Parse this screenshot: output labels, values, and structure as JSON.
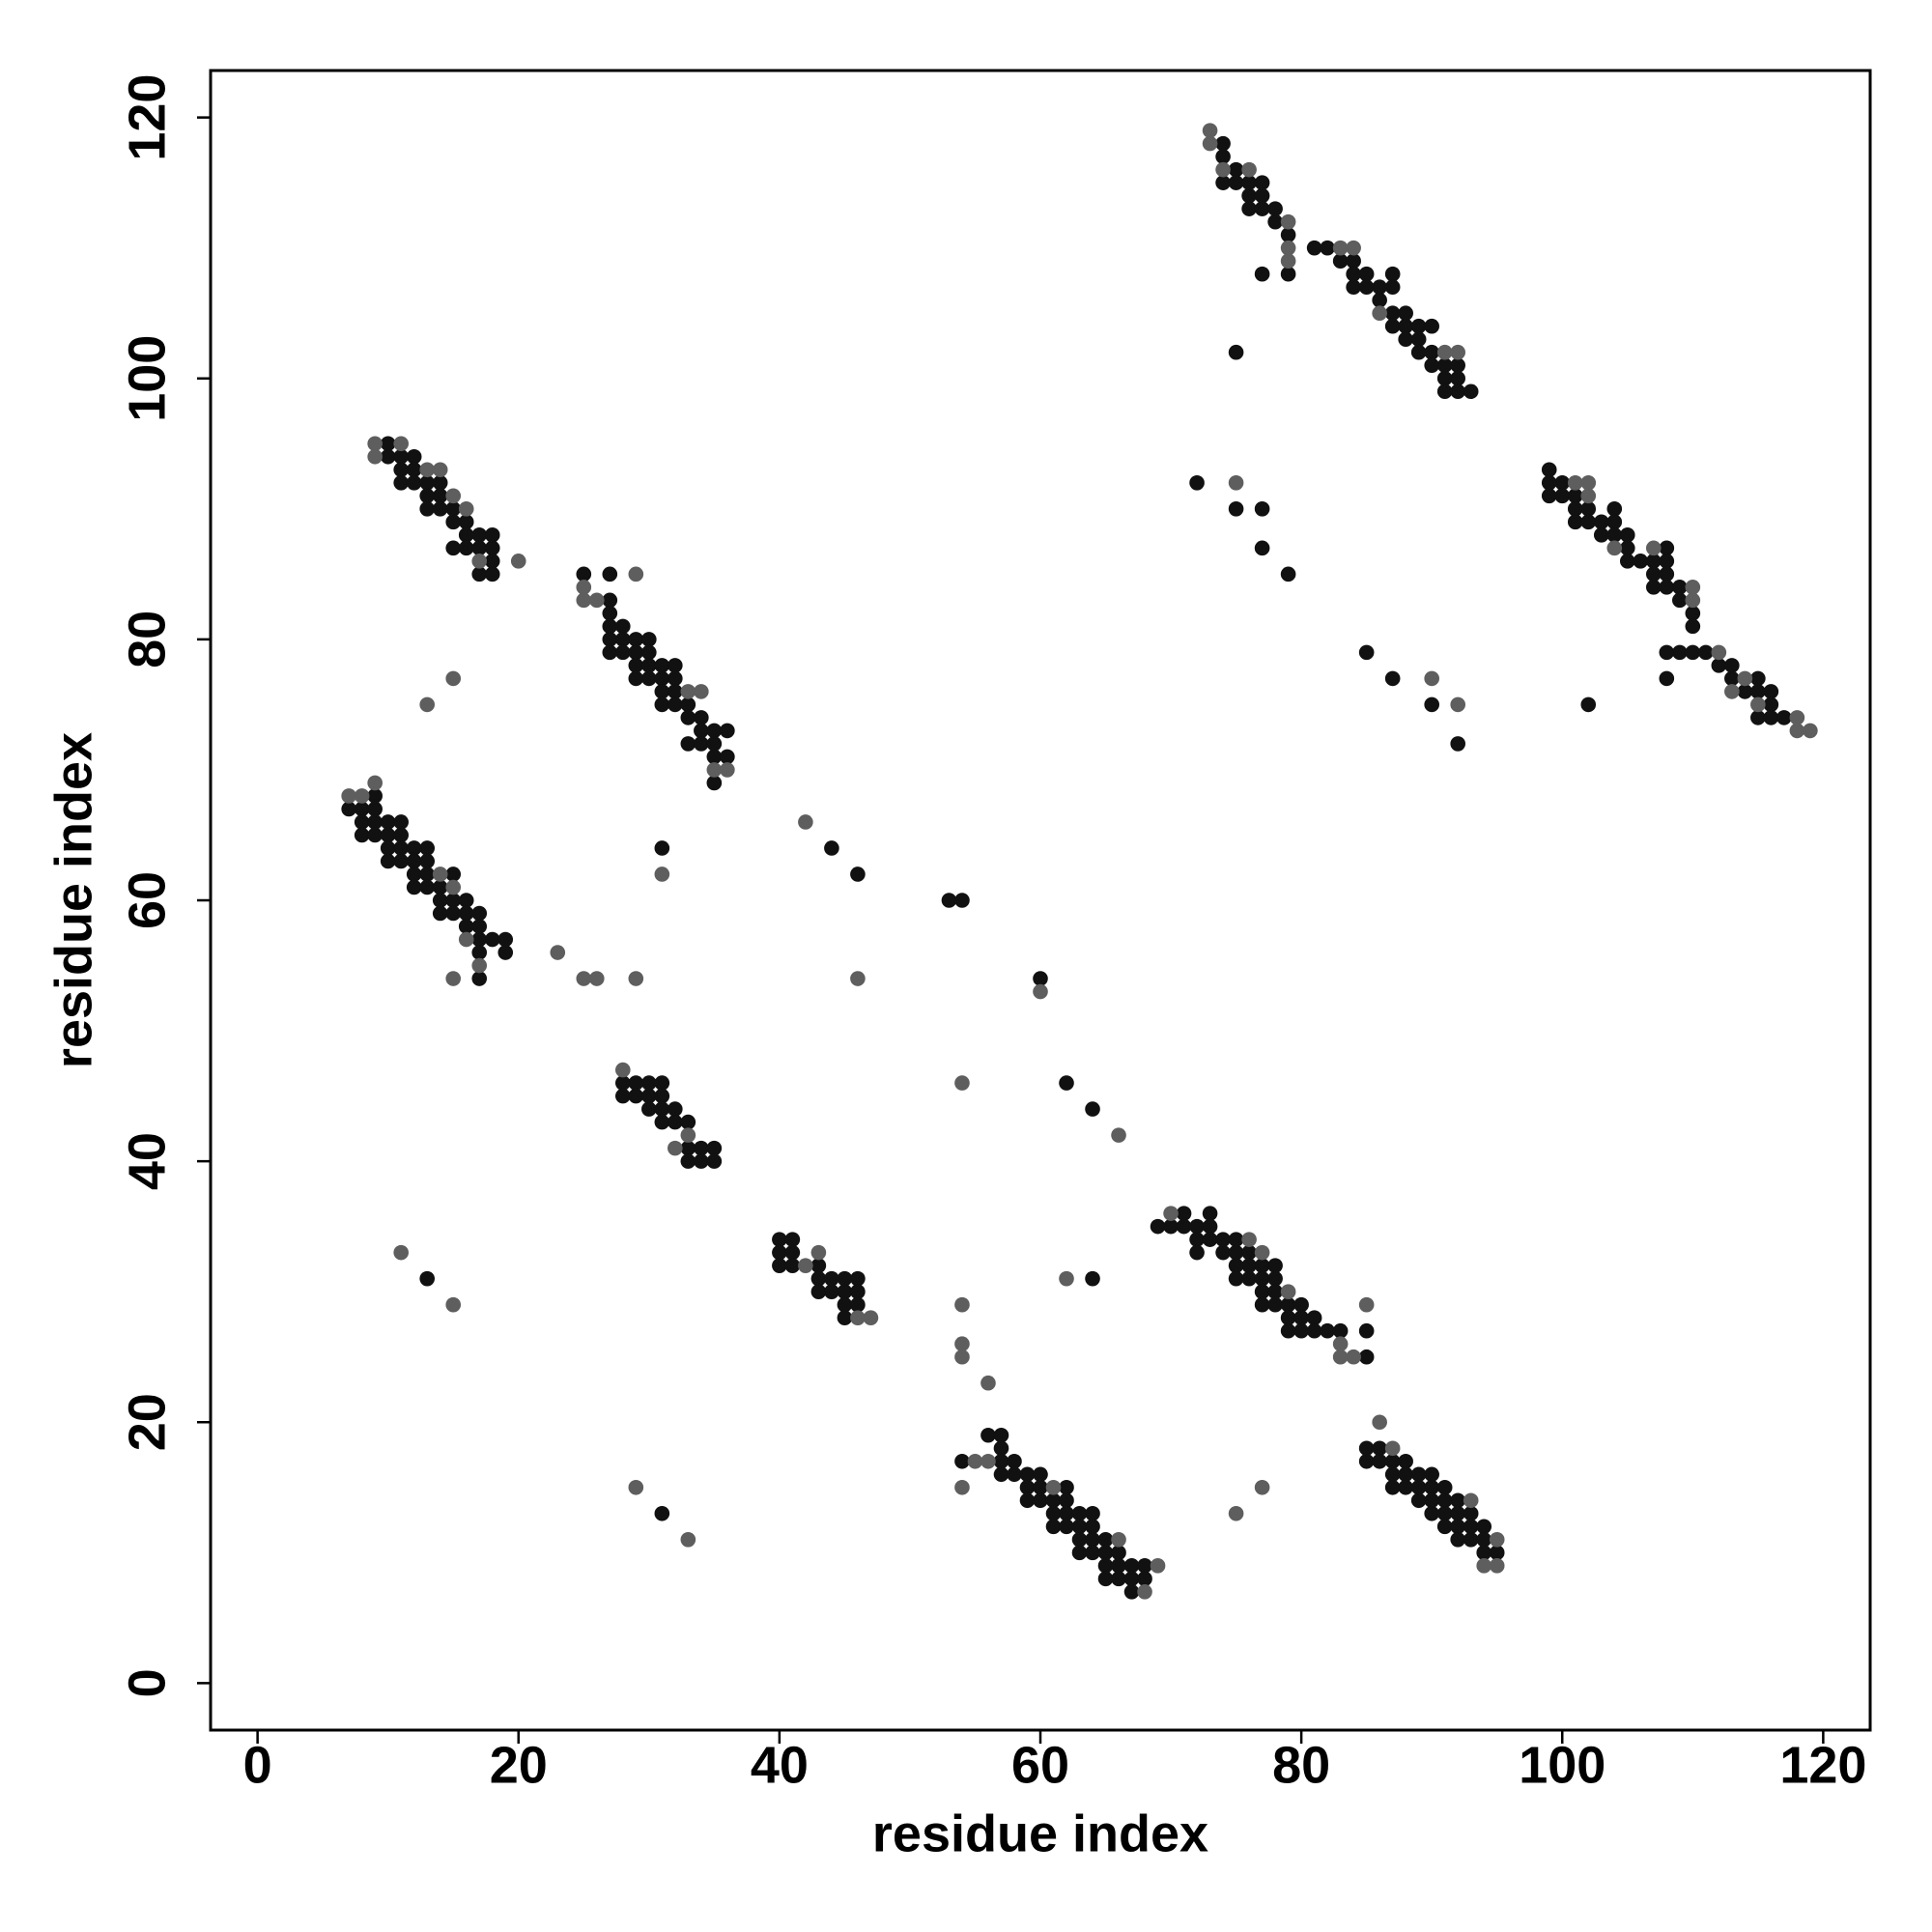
{
  "chart_data": {
    "type": "scatter",
    "xlabel": "residue index",
    "ylabel": "residue index",
    "xlim": [
      -3.6,
      123.6
    ],
    "ylim": [
      -3.6,
      123.6
    ],
    "xticks": [
      0,
      20,
      40,
      60,
      80,
      100,
      120
    ],
    "yticks": [
      0,
      20,
      40,
      60,
      80,
      100,
      120
    ],
    "series": [
      {
        "color": "#111111",
        "x": [
          10,
          10,
          11,
          12,
          12,
          11,
          11,
          12,
          13,
          13,
          13,
          14,
          14,
          14,
          15,
          15,
          15,
          16,
          16,
          16,
          17,
          17,
          17,
          18,
          18,
          18,
          18,
          25,
          27,
          27,
          27,
          27,
          27,
          27,
          28,
          28,
          28,
          29,
          29,
          29,
          29,
          30,
          30,
          30,
          30,
          31,
          31,
          31,
          31,
          32,
          32,
          32,
          32,
          33,
          33,
          33,
          34,
          34,
          34,
          35,
          35,
          35,
          35,
          36,
          36,
          7,
          8,
          8,
          8,
          9,
          9,
          9,
          9,
          10,
          10,
          10,
          10,
          11,
          11,
          11,
          11,
          12,
          12,
          12,
          12,
          13,
          13,
          13,
          13,
          14,
          14,
          14,
          15,
          15,
          15,
          16,
          16,
          16,
          17,
          17,
          17,
          17,
          17,
          18,
          19,
          19,
          31,
          44,
          46,
          53,
          54,
          60,
          62,
          64,
          13,
          31,
          64,
          77,
          75,
          72,
          75,
          77,
          77,
          79,
          85,
          87,
          90,
          92,
          102,
          28,
          28,
          29,
          29,
          30,
          30,
          30,
          31,
          31,
          31,
          31,
          32,
          32,
          33,
          33,
          33,
          34,
          34,
          35,
          35,
          40,
          40,
          40,
          41,
          41,
          41,
          43,
          43,
          43,
          44,
          44,
          45,
          45,
          45,
          45,
          46,
          46,
          46,
          69,
          70,
          71,
          71,
          72,
          72,
          72,
          73,
          73,
          73,
          74,
          74,
          75,
          75,
          75,
          75,
          76,
          76,
          76,
          77,
          77,
          77,
          77,
          78,
          78,
          78,
          78,
          79,
          79,
          79,
          80,
          80,
          80,
          81,
          81,
          82,
          83,
          85,
          85,
          54,
          56,
          57,
          57,
          57,
          57,
          58,
          58,
          59,
          59,
          59,
          60,
          60,
          60,
          61,
          61,
          61,
          62,
          62,
          62,
          62,
          63,
          63,
          63,
          63,
          64,
          64,
          64,
          64,
          65,
          65,
          65,
          65,
          66,
          66,
          66,
          67,
          67,
          67,
          68,
          68,
          85,
          85,
          86,
          86,
          87,
          87,
          87,
          88,
          88,
          88,
          89,
          89,
          89,
          90,
          90,
          90,
          90,
          91,
          91,
          91,
          91,
          92,
          92,
          92,
          92,
          93,
          93,
          93,
          94,
          94,
          94,
          95,
          74,
          74,
          74,
          75,
          75,
          76,
          76,
          76,
          77,
          77,
          77,
          78,
          78,
          79,
          79,
          81,
          82,
          83,
          84,
          84,
          84,
          85,
          85,
          86,
          86,
          87,
          87,
          87,
          87,
          88,
          88,
          88,
          89,
          89,
          89,
          90,
          90,
          90,
          91,
          91,
          91,
          92,
          92,
          92,
          93,
          99,
          99,
          99,
          100,
          100,
          101,
          101,
          101,
          102,
          102,
          103,
          103,
          104,
          104,
          104,
          105,
          105,
          105,
          106,
          107,
          107,
          107,
          108,
          108,
          108,
          108,
          108,
          108,
          109,
          109,
          109,
          110,
          110,
          110,
          111,
          112,
          113,
          113,
          114,
          115,
          115,
          115,
          116,
          116,
          116,
          117
        ],
        "values": [
          95,
          94,
          94,
          94,
          93,
          93,
          92,
          92,
          92,
          91,
          90,
          92,
          91,
          90,
          90,
          89,
          87,
          89,
          88,
          87,
          88,
          87,
          85,
          88,
          87,
          86,
          85,
          85,
          85,
          83,
          82,
          81,
          80,
          79,
          81,
          80,
          79,
          80,
          79,
          78,
          77,
          80,
          79,
          78,
          77,
          78,
          77,
          76,
          75,
          78,
          77,
          76,
          75,
          75,
          74,
          72,
          74,
          73,
          72,
          73,
          72,
          71,
          69,
          73,
          71,
          67,
          67,
          66,
          65,
          68,
          67,
          66,
          65,
          66,
          65,
          64,
          63,
          66,
          65,
          64,
          63,
          64,
          63,
          62,
          61,
          64,
          63,
          62,
          61,
          61,
          60,
          59,
          62,
          60,
          59,
          60,
          59,
          58,
          59,
          58,
          57,
          56,
          54,
          57,
          57,
          56,
          64,
          64,
          62,
          60,
          60,
          54,
          46,
          44,
          31,
          13,
          31,
          108,
          102,
          92,
          90,
          90,
          87,
          85,
          79,
          77,
          75,
          72,
          75,
          46,
          45,
          46,
          45,
          46,
          45,
          44,
          46,
          45,
          44,
          43,
          44,
          43,
          43,
          41,
          40,
          41,
          40,
          41,
          40,
          34,
          33,
          32,
          34,
          33,
          32,
          32,
          31,
          30,
          31,
          30,
          31,
          30,
          29,
          28,
          31,
          30,
          29,
          35,
          35,
          36,
          35,
          35,
          34,
          33,
          36,
          35,
          34,
          34,
          33,
          34,
          33,
          32,
          31,
          33,
          32,
          31,
          32,
          31,
          30,
          29,
          32,
          31,
          30,
          29,
          29,
          28,
          27,
          29,
          28,
          27,
          28,
          27,
          27,
          27,
          27,
          25,
          17,
          19,
          19,
          18,
          17,
          16,
          17,
          16,
          16,
          15,
          14,
          16,
          15,
          14,
          14,
          13,
          12,
          15,
          14,
          13,
          12,
          13,
          12,
          11,
          10,
          13,
          12,
          11,
          10,
          11,
          10,
          9,
          8,
          10,
          9,
          8,
          9,
          8,
          7,
          9,
          8,
          18,
          17,
          18,
          17,
          17,
          16,
          15,
          17,
          16,
          15,
          16,
          15,
          14,
          16,
          15,
          14,
          13,
          15,
          14,
          13,
          12,
          14,
          13,
          12,
          11,
          13,
          12,
          11,
          12,
          11,
          10,
          10,
          118,
          117,
          115,
          116,
          115,
          115,
          114,
          113,
          115,
          114,
          113,
          113,
          112,
          111,
          108,
          110,
          110,
          109,
          109,
          108,
          107,
          108,
          107,
          107,
          106,
          108,
          107,
          105,
          104,
          105,
          104,
          103,
          104,
          103,
          102,
          104,
          102,
          101,
          101,
          100,
          99,
          101,
          100,
          99,
          99,
          93,
          92,
          91,
          92,
          91,
          91,
          90,
          89,
          90,
          89,
          89,
          88,
          90,
          89,
          88,
          88,
          87,
          86,
          86,
          86,
          85,
          84,
          87,
          86,
          85,
          84,
          79,
          77,
          84,
          83,
          79,
          82,
          81,
          79,
          79,
          78,
          78,
          77,
          76,
          77,
          76,
          74,
          76,
          75,
          74,
          74
        ]
      },
      {
        "color": "#5e5e5e",
        "x": [
          9,
          9,
          11,
          13,
          14,
          16,
          15,
          17,
          20,
          25,
          25,
          26,
          29,
          33,
          34,
          35,
          36,
          7,
          8,
          9,
          14,
          15,
          16,
          17,
          15,
          13,
          15,
          23,
          25,
          26,
          29,
          31,
          42,
          46,
          54,
          60,
          66,
          11,
          15,
          29,
          33,
          54,
          54,
          54,
          56,
          54,
          62,
          75,
          77,
          28,
          33,
          32,
          43,
          42,
          47,
          46,
          70,
          76,
          77,
          79,
          83,
          83,
          84,
          85,
          55,
          56,
          61,
          66,
          68,
          69,
          86,
          87,
          93,
          94,
          95,
          95,
          73,
          73,
          74,
          76,
          79,
          79,
          79,
          83,
          84,
          86,
          91,
          92,
          75,
          90,
          92,
          101,
          102,
          102,
          104,
          107,
          110,
          110,
          112,
          113,
          114,
          115,
          118,
          118,
          119
        ],
        "values": [
          95,
          94,
          95,
          93,
          93,
          90,
          91,
          86,
          86,
          84,
          83,
          83,
          85,
          76,
          76,
          70,
          70,
          68,
          68,
          69,
          62,
          61,
          57,
          55,
          54,
          75,
          77,
          56,
          54,
          54,
          54,
          62,
          66,
          54,
          46,
          53,
          42,
          33,
          29,
          15,
          11,
          29,
          26,
          25,
          23,
          15,
          31,
          13,
          15,
          47,
          42,
          41,
          33,
          32,
          28,
          28,
          36,
          34,
          33,
          30,
          26,
          25,
          25,
          29,
          17,
          17,
          15,
          11,
          7,
          9,
          20,
          18,
          14,
          9,
          11,
          9,
          119,
          118,
          116,
          116,
          112,
          110,
          109,
          110,
          110,
          105,
          102,
          102,
          92,
          77,
          75,
          92,
          92,
          91,
          87,
          87,
          84,
          83,
          79,
          76,
          77,
          75,
          74,
          73,
          73
        ]
      }
    ]
  }
}
